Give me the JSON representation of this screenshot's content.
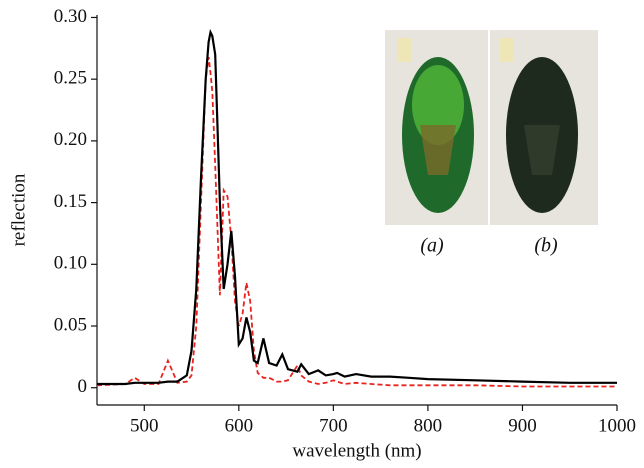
{
  "chart_data": {
    "type": "line",
    "x_label": "wavelength (nm)",
    "y_label": "reflection",
    "x": [
      450,
      480,
      490,
      500,
      515,
      525,
      535,
      545,
      550,
      555,
      560,
      565,
      568,
      570,
      572,
      575,
      580,
      584,
      588,
      592,
      596,
      600,
      604,
      608,
      612,
      616,
      620,
      626,
      632,
      640,
      646,
      652,
      662,
      666,
      674,
      684,
      692,
      700,
      704,
      712,
      724,
      740,
      760,
      780,
      800,
      850,
      900,
      950,
      1000
    ],
    "series": [
      {
        "color": "#000000",
        "dash": "none",
        "values": [
          0.003,
          0.003,
          0.004,
          0.004,
          0.004,
          0.005,
          0.005,
          0.01,
          0.03,
          0.08,
          0.17,
          0.25,
          0.28,
          0.288,
          0.285,
          0.27,
          0.15,
          0.08,
          0.1,
          0.127,
          0.09,
          0.035,
          0.04,
          0.057,
          0.045,
          0.022,
          0.02,
          0.04,
          0.02,
          0.018,
          0.027,
          0.015,
          0.013,
          0.019,
          0.011,
          0.014,
          0.01,
          0.011,
          0.012,
          0.009,
          0.011,
          0.009,
          0.009,
          0.008,
          0.007,
          0.006,
          0.005,
          0.004,
          0.004
        ]
      },
      {
        "color": "#e8231f",
        "dash": "5,3",
        "values": [
          0.002,
          0.003,
          0.008,
          0.003,
          0.003,
          0.022,
          0.004,
          0.005,
          0.01,
          0.05,
          0.15,
          0.25,
          0.268,
          0.255,
          0.24,
          0.18,
          0.075,
          0.16,
          0.155,
          0.12,
          0.07,
          0.05,
          0.06,
          0.085,
          0.07,
          0.03,
          0.012,
          0.008,
          0.008,
          0.005,
          0.005,
          0.006,
          0.018,
          0.01,
          0.005,
          0.003,
          0.004,
          0.006,
          0.005,
          0.003,
          0.004,
          0.003,
          0.002,
          0.002,
          0.002,
          0.002,
          0.001,
          0.001,
          0.001
        ]
      }
    ],
    "xlim": [
      450,
      1000
    ],
    "xticks": [
      500,
      600,
      700,
      800,
      900,
      1000
    ],
    "ylim": [
      -0.014,
      0.302
    ],
    "yticks": [
      0,
      0.05,
      {
        "value": 0.1,
        "label": "0.10"
      },
      0.15,
      {
        "value": 0.2,
        "label": "0.20"
      },
      0.25,
      {
        "value": 0.3,
        "label": "0.30"
      }
    ],
    "annotations": [
      "(a)",
      "(b)"
    ]
  }
}
